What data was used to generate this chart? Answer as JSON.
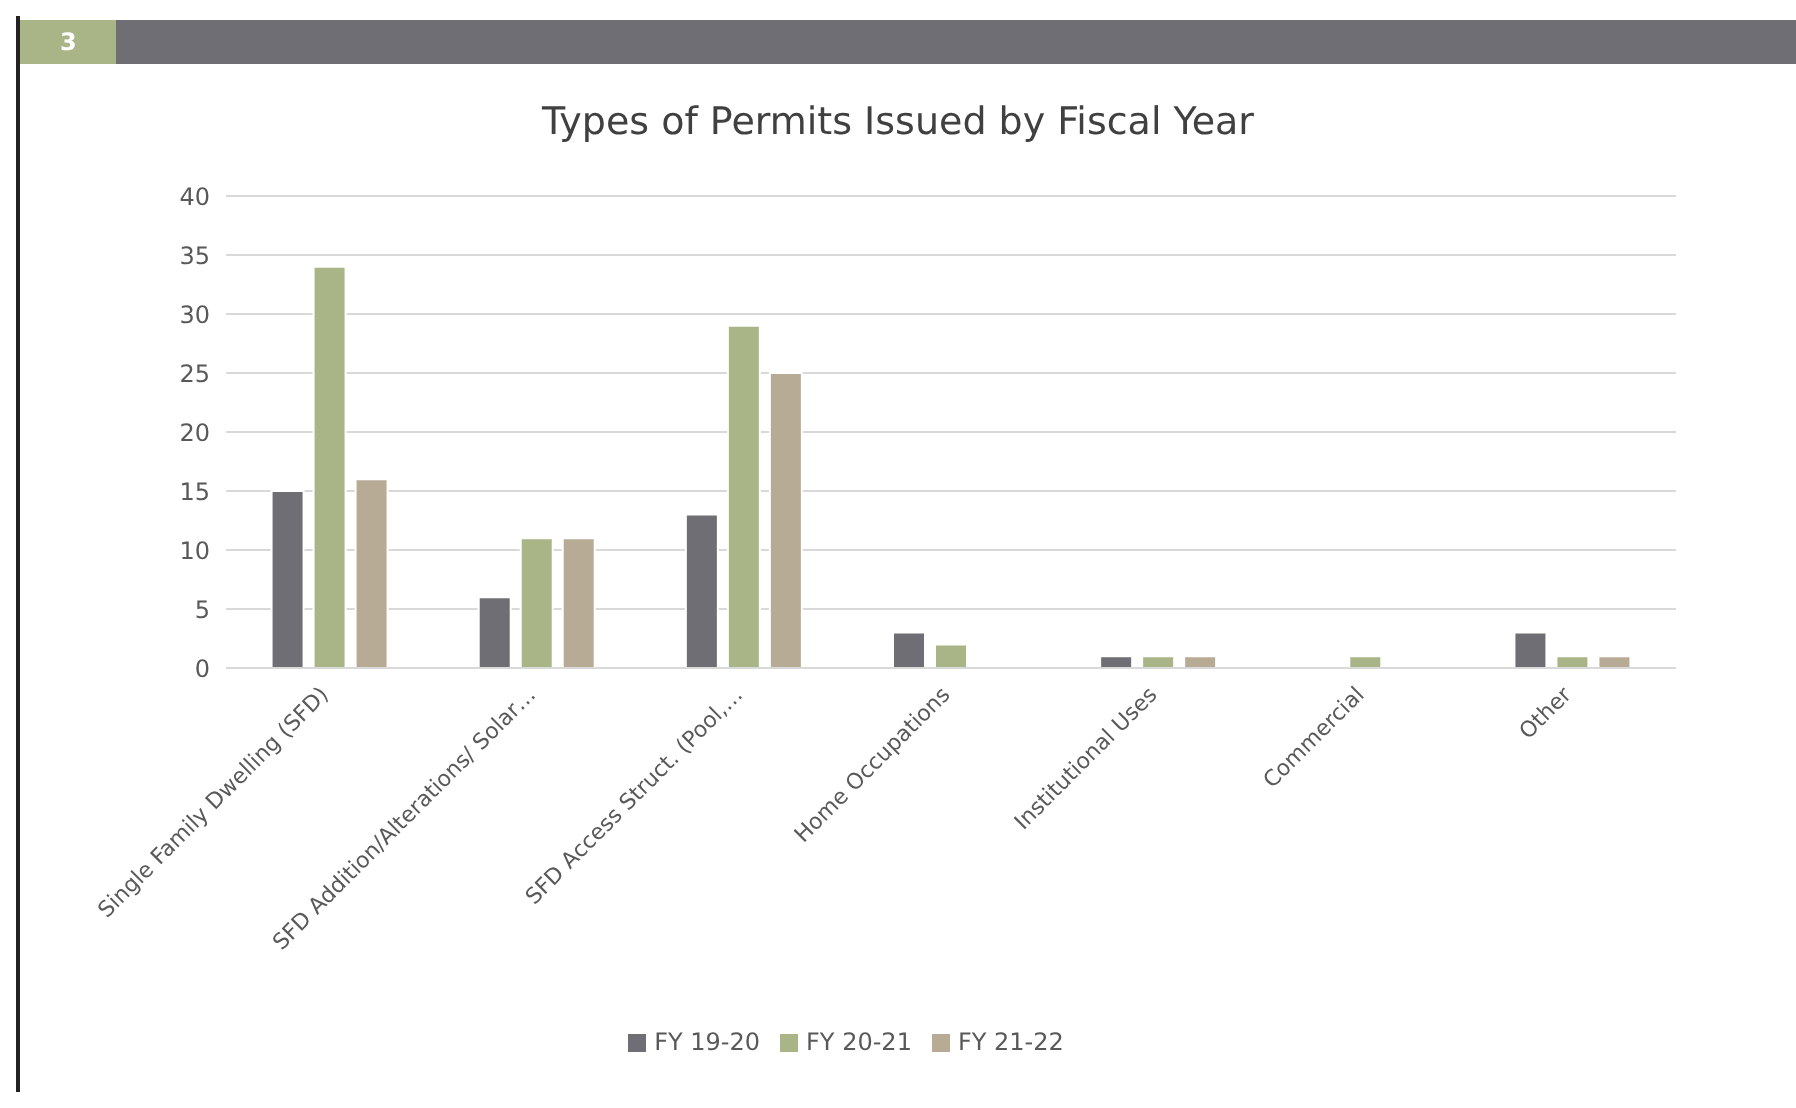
{
  "chart_data": {
    "type": "bar",
    "title": "Types of Permits Issued by Fiscal Year",
    "annotations": [
      "3"
    ],
    "categories": [
      "Single Family Dwelling (SFD)",
      "SFD Addition/Alterations/ Solar…",
      "SFD Access Struct. (Pool,…",
      "Home Occupations",
      "Institutional Uses",
      "Commercial",
      "Other"
    ],
    "series": [
      {
        "name": "FY 19-20",
        "color": "#6f6e74",
        "values": [
          15,
          6,
          13,
          3,
          1,
          0,
          3
        ]
      },
      {
        "name": "FY 20-21",
        "color": "#a9b587",
        "values": [
          34,
          11,
          29,
          2,
          1,
          1,
          1
        ]
      },
      {
        "name": "FY 21-22",
        "color": "#b8ab96",
        "values": [
          16,
          11,
          25,
          0,
          1,
          0,
          1
        ]
      }
    ],
    "ylim": [
      0,
      40
    ],
    "yticks": [
      0,
      5,
      10,
      15,
      20,
      25,
      30,
      35,
      40
    ],
    "grid": "y",
    "legend": "bottom"
  }
}
